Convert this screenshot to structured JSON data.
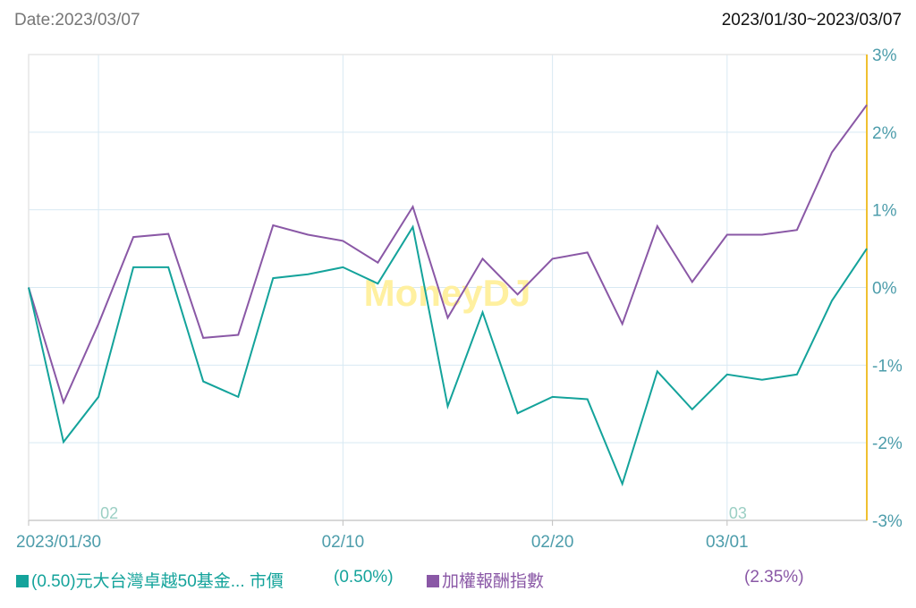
{
  "header": {
    "date_label": "Date:2023/03/07",
    "range_label": "2023/01/30~2023/03/07"
  },
  "watermark": "MoneyDJ",
  "colors": {
    "series1": "#14a39b",
    "series2": "#8a58a6",
    "right_axis": "#f0c030",
    "axis_text": "#4d9dab",
    "month_text": "#9ccfc4",
    "grid": "#d8e9f3",
    "watermark": "#fff0a0"
  },
  "legend": {
    "series1_name": "(0.50)元大台灣卓越50基金... 市價",
    "series1_value": "(0.50%)",
    "series2_name": "加權報酬指數",
    "series2_value": "(2.35%)"
  },
  "chart_data": {
    "type": "line",
    "x": [
      "2023/01/30",
      "2023/01/31",
      "2023/02/01",
      "2023/02/02",
      "2023/02/03",
      "2023/02/06",
      "2023/02/07",
      "2023/02/08",
      "2023/02/09",
      "2023/02/10",
      "2023/02/13",
      "2023/02/14",
      "2023/02/15",
      "2023/02/16",
      "2023/02/17",
      "2023/02/20",
      "2023/02/21",
      "2023/02/22",
      "2023/02/23",
      "2023/02/24",
      "2023/03/01",
      "2023/03/02",
      "2023/03/03",
      "2023/03/06",
      "2023/03/07"
    ],
    "x_tick_labels": [
      {
        "index": 0,
        "label": "2023/01/30"
      },
      {
        "index": 9,
        "label": "02/10"
      },
      {
        "index": 15,
        "label": "02/20"
      },
      {
        "index": 20,
        "label": "03/01"
      }
    ],
    "month_markers": [
      {
        "index": 2,
        "label": "02"
      },
      {
        "index": 20,
        "label": "03"
      }
    ],
    "y_ticks": [
      {
        "value": 3,
        "label": "3%"
      },
      {
        "value": 2,
        "label": "2%"
      },
      {
        "value": 1,
        "label": "1%"
      },
      {
        "value": 0,
        "label": "0%"
      },
      {
        "value": -1,
        "label": "-1%"
      },
      {
        "value": -2,
        "label": "-2%"
      },
      {
        "value": -3,
        "label": "-3%"
      }
    ],
    "ylim": [
      -3,
      3
    ],
    "y_unit": "%",
    "grid": true,
    "series": [
      {
        "name": "(0.50)元大台灣卓越50基金... 市價",
        "values": [
          0.0,
          -1.99,
          -1.41,
          0.26,
          0.26,
          -1.21,
          -1.41,
          0.12,
          0.17,
          0.26,
          0.05,
          0.78,
          -1.53,
          -0.32,
          -1.62,
          -1.41,
          -1.44,
          -2.53,
          -1.08,
          -1.57,
          -1.12,
          -1.19,
          -1.12,
          -0.17,
          0.5
        ]
      },
      {
        "name": "加權報酬指數",
        "values": [
          0.0,
          -1.48,
          -0.47,
          0.65,
          0.69,
          -0.65,
          -0.61,
          0.8,
          0.68,
          0.6,
          0.32,
          1.04,
          -0.39,
          0.37,
          -0.09,
          0.37,
          0.45,
          -0.47,
          0.79,
          0.07,
          0.68,
          0.68,
          0.74,
          1.74,
          2.35
        ]
      }
    ]
  }
}
